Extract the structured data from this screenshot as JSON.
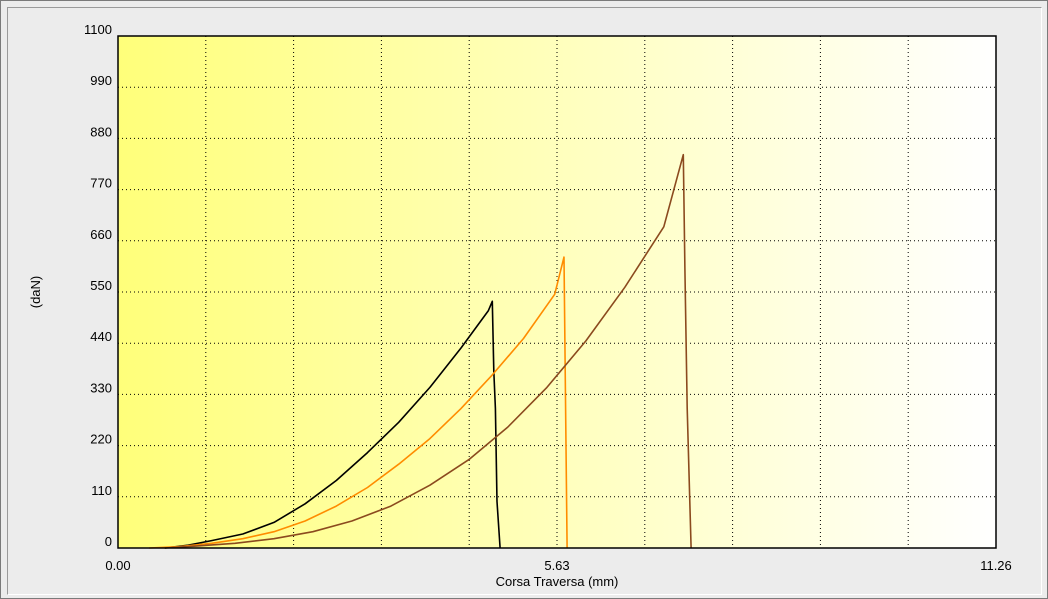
{
  "chart_data": {
    "type": "line",
    "title": "",
    "xlabel": "Corsa Traversa (mm)",
    "ylabel": "(daN)",
    "xlim": [
      0,
      11.26
    ],
    "ylim": [
      0,
      1100
    ],
    "x_ticks": [
      0.0,
      5.63,
      11.26
    ],
    "x_tick_labels": [
      "0.00",
      "5.63",
      "11.26"
    ],
    "x_grid": [
      0,
      1.126,
      2.252,
      3.378,
      4.504,
      5.63,
      6.756,
      7.882,
      9.008,
      10.134,
      11.26
    ],
    "y_ticks": [
      0,
      110,
      220,
      330,
      440,
      550,
      660,
      770,
      880,
      990,
      1100
    ],
    "y_tick_labels": [
      "0",
      "110",
      "220",
      "330",
      "440",
      "550",
      "660",
      "770",
      "880",
      "990",
      "1100"
    ],
    "grid": true,
    "background": "yellow-to-white horizontal gradient",
    "colors": {
      "gradient_start": "#ffff7a",
      "gradient_end": "#ffffff",
      "grid": "#000000"
    },
    "series": [
      {
        "color": "#000000",
        "x": [
          0.6,
          0.9,
          1.2,
          1.6,
          2.0,
          2.4,
          2.8,
          3.2,
          3.6,
          4.0,
          4.4,
          4.75,
          4.8,
          4.82,
          4.84,
          4.86,
          4.9
        ],
        "y": [
          0,
          6,
          16,
          30,
          55,
          95,
          145,
          205,
          270,
          345,
          430,
          510,
          530,
          380,
          300,
          100,
          0
        ]
      },
      {
        "color": "#ff8c00",
        "x": [
          0.4,
          0.8,
          1.2,
          1.6,
          2.0,
          2.4,
          2.8,
          3.2,
          3.6,
          4.0,
          4.4,
          4.8,
          5.2,
          5.6,
          5.72,
          5.74,
          5.76
        ],
        "y": [
          0,
          3,
          10,
          20,
          35,
          58,
          90,
          130,
          180,
          235,
          300,
          372,
          450,
          545,
          625,
          300,
          0
        ]
      },
      {
        "color": "#8b4a1e",
        "x": [
          0.6,
          1.0,
          1.5,
          2.0,
          2.5,
          3.0,
          3.5,
          4.0,
          4.5,
          5.0,
          5.5,
          6.0,
          6.5,
          7.0,
          7.25,
          7.27,
          7.3,
          7.35
        ],
        "y": [
          0,
          4,
          10,
          20,
          35,
          58,
          90,
          135,
          190,
          260,
          345,
          445,
          560,
          690,
          845,
          600,
          300,
          0
        ]
      }
    ]
  }
}
